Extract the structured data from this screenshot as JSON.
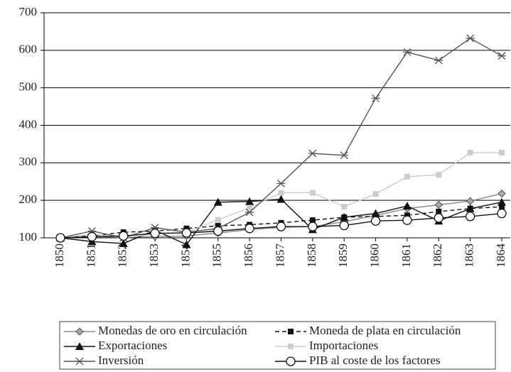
{
  "chart_data": {
    "type": "line",
    "categories": [
      "1850",
      "1851",
      "1852",
      "1853",
      "1854",
      "1855",
      "1856",
      "1857",
      "1858",
      "1859",
      "1860",
      "1861",
      "1862",
      "1863",
      "1864"
    ],
    "ylim": [
      100,
      700
    ],
    "yticks": [
      100,
      200,
      300,
      400,
      500,
      600,
      700
    ],
    "grid": true,
    "series": [
      {
        "name": "Monedas de oro en circulación",
        "color": "#888888",
        "marker": "diamond",
        "dash": false,
        "values": [
          100,
          103,
          102,
          103,
          105,
          113,
          122,
          128,
          130,
          143,
          160,
          178,
          188,
          198,
          218
        ]
      },
      {
        "name": "Moneda de plata en circulación",
        "color": "#111111",
        "marker": "square",
        "dash": true,
        "values": [
          100,
          105,
          115,
          118,
          125,
          132,
          135,
          140,
          147,
          155,
          157,
          160,
          170,
          178,
          183
        ]
      },
      {
        "name": "Exportaciones",
        "color": "#111111",
        "marker": "triangle",
        "dash": false,
        "values": [
          100,
          90,
          85,
          120,
          82,
          195,
          197,
          203,
          122,
          155,
          165,
          185,
          145,
          178,
          195
        ]
      },
      {
        "name": "Importaciones",
        "color": "#cccccc",
        "marker": "square",
        "dash": false,
        "values": [
          100,
          110,
          100,
          110,
          115,
          148,
          180,
          220,
          220,
          183,
          217,
          263,
          268,
          327,
          327
        ]
      },
      {
        "name": "Inversión",
        "color": "#555555",
        "marker": "star",
        "dash": false,
        "values": [
          100,
          118,
          100,
          127,
          115,
          125,
          168,
          245,
          325,
          320,
          472,
          595,
          573,
          632,
          585
        ]
      },
      {
        "name": "PIB al coste de los factores",
        "color": "#111111",
        "marker": "circle",
        "dash": false,
        "values": [
          100,
          103,
          105,
          112,
          113,
          118,
          125,
          130,
          130,
          133,
          145,
          147,
          153,
          157,
          165
        ]
      }
    ]
  }
}
